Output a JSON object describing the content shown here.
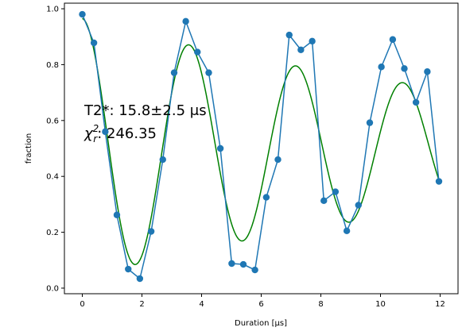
{
  "chart_data": {
    "type": "line",
    "xlabel": "Duration [μs]",
    "ylabel": "fraction",
    "xlim": [
      -0.6,
      12.6
    ],
    "ylim": [
      -0.02,
      1.02
    ],
    "x_ticks": [
      0,
      2,
      4,
      6,
      8,
      10,
      12
    ],
    "y_ticks": [
      0.0,
      0.2,
      0.4,
      0.6,
      0.8,
      1.0
    ],
    "grid": false,
    "annotations": {
      "t2_text": "T2*: 15.8±2.5 μs",
      "chi_symbol": "χ",
      "chi_sub": "r",
      "chi_sup": "2",
      "chi_value": ": 246.35"
    },
    "series": [
      {
        "color": "#1f77b4",
        "style": "line-markers",
        "x": [
          0.0,
          0.39,
          0.77,
          1.16,
          1.54,
          1.93,
          2.31,
          2.7,
          3.08,
          3.47,
          3.86,
          4.24,
          4.63,
          5.01,
          5.4,
          5.79,
          6.17,
          6.56,
          6.94,
          7.33,
          7.71,
          8.1,
          8.49,
          8.87,
          9.26,
          9.64,
          10.03,
          10.41,
          10.8,
          11.19,
          11.57,
          11.96
        ],
        "y": [
          0.98,
          0.878,
          0.56,
          0.262,
          0.068,
          0.034,
          0.203,
          0.46,
          0.771,
          0.955,
          0.845,
          0.771,
          0.5,
          0.088,
          0.085,
          0.065,
          0.325,
          0.46,
          0.906,
          0.853,
          0.884,
          0.313,
          0.345,
          0.205,
          0.297,
          0.592,
          0.792,
          0.89,
          0.786,
          0.665,
          0.775,
          0.382
        ]
      },
      {
        "color": "#008000",
        "style": "fit-curve",
        "fit": {
          "amplitude": 0.465,
          "frequency_mhz": 0.279,
          "t2_us": 15.8,
          "offset": 0.5
        }
      }
    ]
  }
}
